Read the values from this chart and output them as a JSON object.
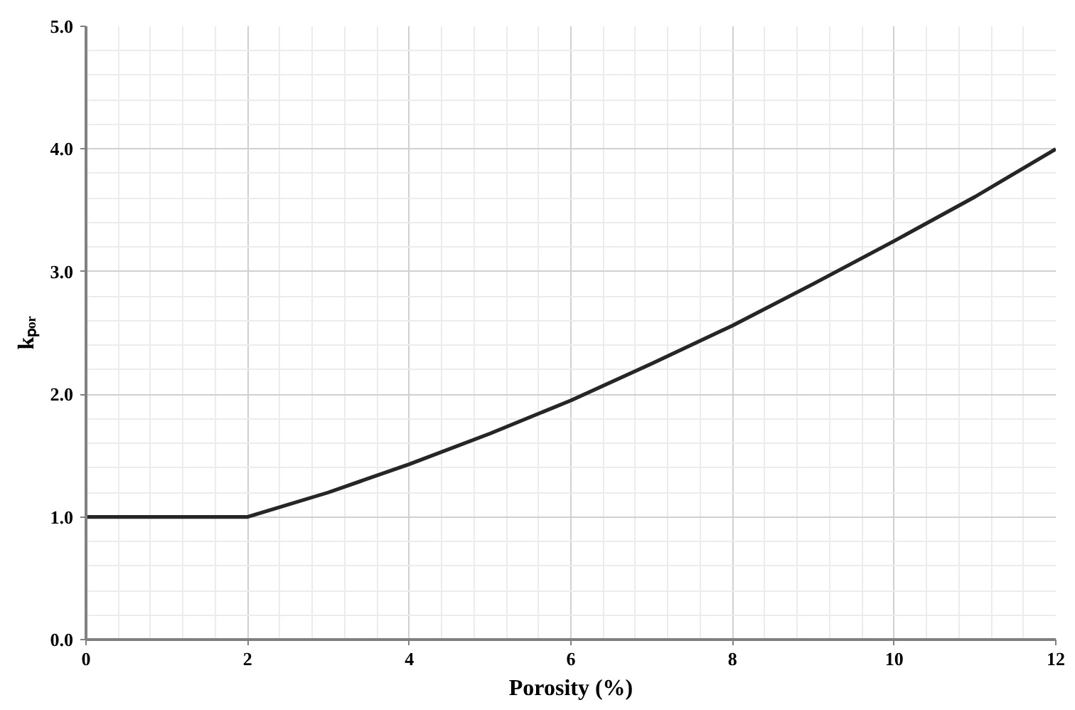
{
  "chart_data": {
    "type": "line",
    "xlabel": "Porosity (%)",
    "ylabel": "kₚₒᵣ",
    "x": [
      0,
      1,
      2,
      3,
      4,
      5,
      6,
      7,
      8,
      9,
      10,
      11,
      12
    ],
    "series": [
      {
        "color": "#262626",
        "values": [
          1.0,
          1.0,
          1.0,
          1.2,
          1.43,
          1.68,
          1.95,
          2.25,
          2.56,
          2.9,
          3.25,
          3.61,
          4.0
        ]
      }
    ],
    "xlim": [
      0,
      12
    ],
    "ylim": [
      0,
      5
    ],
    "xticks": [
      0,
      2,
      4,
      6,
      8,
      10,
      12
    ],
    "yticks": [
      {
        "value": 0,
        "label": "0.0"
      },
      {
        "value": 1,
        "label": "1.0"
      },
      {
        "value": 2,
        "label": "2.0"
      },
      {
        "value": 3,
        "label": "3.0"
      },
      {
        "value": 4,
        "label": "4.0"
      },
      {
        "value": 5,
        "label": "5.0"
      }
    ],
    "grid": true,
    "marker": "none",
    "line_style": "solid"
  }
}
